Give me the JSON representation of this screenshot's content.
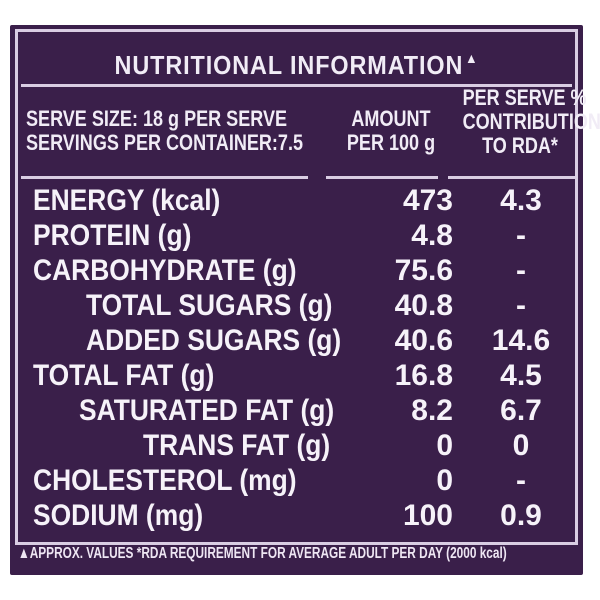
{
  "title": "NUTRITIONAL INFORMATION",
  "title_mark": "▲",
  "header": {
    "serve_size": "SERVE SIZE: 18 g PER SERVE",
    "servings": "SERVINGS PER CONTAINER:7.5",
    "amount_line1": "AMOUNT",
    "amount_line2": "PER 100 g",
    "rda_line1": "PER SERVE %",
    "rda_line2": "CONTRIBUTION",
    "rda_line3": "TO RDA*"
  },
  "rows": [
    {
      "label": "ENERGY (kcal)",
      "amount": "473",
      "rda": "4.3"
    },
    {
      "label": "PROTEIN (g)",
      "amount": "4.8",
      "rda": "-"
    },
    {
      "label": "CARBOHYDRATE (g)",
      "amount": "75.6",
      "rda": "-"
    },
    {
      "label": "TOTAL SUGARS (g)",
      "amount": "40.8",
      "rda": "-"
    },
    {
      "label": "ADDED SUGARS (g)",
      "amount": "40.6",
      "rda": "14.6"
    },
    {
      "label": "TOTAL FAT (g)",
      "amount": "16.8",
      "rda": "4.5"
    },
    {
      "label": "SATURATED FAT (g)",
      "amount": "8.2",
      "rda": "6.7"
    },
    {
      "label": "TRANS FAT (g)",
      "amount": "0",
      "rda": "0"
    },
    {
      "label": "CHOLESTEROL (mg)",
      "amount": "0",
      "rda": "-"
    },
    {
      "label": "SODIUM (mg)",
      "amount": "100",
      "rda": "0.9"
    }
  ],
  "footnote": "▲APPROX. VALUES *RDA REQUIREMENT FOR AVERAGE ADULT PER DAY (2000 kcal)",
  "colors": {
    "background": "#3a1f4a",
    "text": "#f1ecf6",
    "rule": "#d9cde3"
  }
}
